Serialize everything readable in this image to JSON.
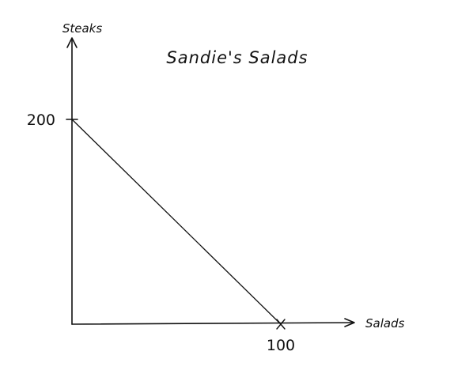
{
  "chart_data": {
    "type": "line",
    "title": "Sandie's Salads",
    "xlabel": "Salads",
    "ylabel": "Steaks",
    "xlim": [
      0,
      100
    ],
    "ylim": [
      0,
      200
    ],
    "x_ticks": [
      {
        "value": 100,
        "label": "100"
      }
    ],
    "y_ticks": [
      {
        "value": 200,
        "label": "200"
      }
    ],
    "grid": false,
    "series": [
      {
        "points": [
          {
            "x": 0,
            "y": 200
          },
          {
            "x": 100,
            "y": 0
          }
        ]
      }
    ]
  }
}
